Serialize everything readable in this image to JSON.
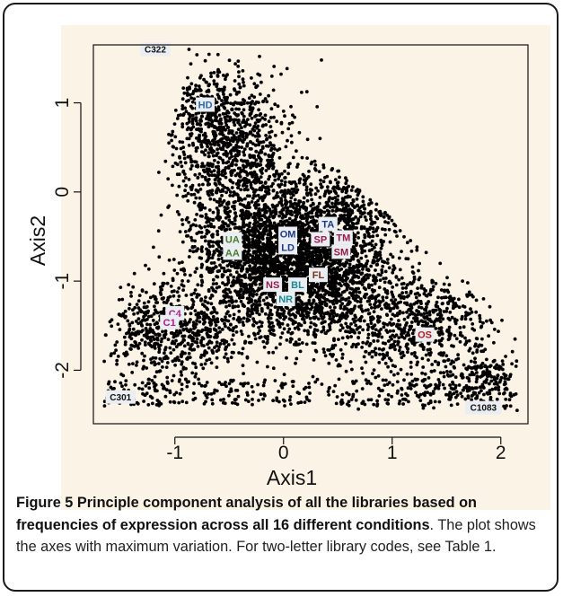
{
  "figure": {
    "caption_title": "Figure 5 Principle component analysis of all the libraries based on frequencies of expression across all 16 different conditions",
    "caption_title_end": ".",
    "caption_text": "The plot shows the axes with maximum variation. For two-letter library codes, see Table 1."
  },
  "colors": {
    "panel_background": "#fbf3e6",
    "points": "#000000",
    "label_box": "#eaedf2",
    "blue": "#2b6cb0",
    "green": "#4a7a2c",
    "navy": "#1c3a8c",
    "crimson": "#9b1a4a",
    "brown": "#7a3412",
    "teal": "#1b8a96",
    "red": "#b91c1c",
    "magenta": "#b0198a",
    "black": "#111111"
  },
  "chart_data": {
    "type": "scatter",
    "xlabel": "Axis1",
    "ylabel": "Axis2",
    "xlim": [
      -1.75,
      2.25
    ],
    "ylim": [
      -2.6,
      1.65
    ],
    "xticks": [
      -1,
      0,
      1,
      2
    ],
    "yticks": [
      1,
      0,
      -1,
      -2
    ],
    "xtick_labels": [
      "-1",
      "0",
      "1",
      "2"
    ],
    "ytick_labels": [
      "1",
      "0",
      "-1",
      "-2"
    ],
    "grid": false,
    "legend": "none",
    "points_description": "dense triangular cloud of several thousand gene points centred near (0.1, -0.8) with tails toward (-1.65, -1.9), (2.1, -2.35) and (-0.9, 1.5)",
    "extreme_points": [
      {
        "x": -0.87,
        "y": 1.6
      },
      {
        "x": -1.65,
        "y": -1.9
      },
      {
        "x": 2.15,
        "y": -2.45
      }
    ],
    "library_labels": [
      {
        "text": "C322",
        "x": -1.18,
        "y": 1.6,
        "color": "black"
      },
      {
        "text": "HD",
        "x": -0.72,
        "y": 0.98,
        "color": "blue"
      },
      {
        "text": "UA",
        "x": -0.47,
        "y": -0.53,
        "color": "green"
      },
      {
        "text": "AA",
        "x": -0.47,
        "y": -0.68,
        "color": "green"
      },
      {
        "text": "OM",
        "x": 0.04,
        "y": -0.47,
        "color": "navy"
      },
      {
        "text": "LD",
        "x": 0.04,
        "y": -0.62,
        "color": "navy"
      },
      {
        "text": "TA",
        "x": 0.41,
        "y": -0.36,
        "color": "navy"
      },
      {
        "text": "SP",
        "x": 0.34,
        "y": -0.53,
        "color": "crimson"
      },
      {
        "text": "TM",
        "x": 0.55,
        "y": -0.51,
        "color": "crimson"
      },
      {
        "text": "SM",
        "x": 0.53,
        "y": -0.67,
        "color": "crimson"
      },
      {
        "text": "FL",
        "x": 0.32,
        "y": -0.93,
        "color": "brown"
      },
      {
        "text": "NS",
        "x": -0.1,
        "y": -1.04,
        "color": "crimson"
      },
      {
        "text": "BL",
        "x": 0.13,
        "y": -1.04,
        "color": "teal"
      },
      {
        "text": "NR",
        "x": 0.02,
        "y": -1.2,
        "color": "teal"
      },
      {
        "text": "C4",
        "x": -1.0,
        "y": -1.36,
        "color": "magenta"
      },
      {
        "text": "C1",
        "x": -1.05,
        "y": -1.46,
        "color": "magenta"
      },
      {
        "text": "OS",
        "x": 1.3,
        "y": -1.6,
        "color": "red"
      },
      {
        "text": "C301",
        "x": -1.5,
        "y": -2.3,
        "color": "black"
      },
      {
        "text": "C1083",
        "x": 1.84,
        "y": -2.42,
        "color": "black"
      }
    ]
  }
}
